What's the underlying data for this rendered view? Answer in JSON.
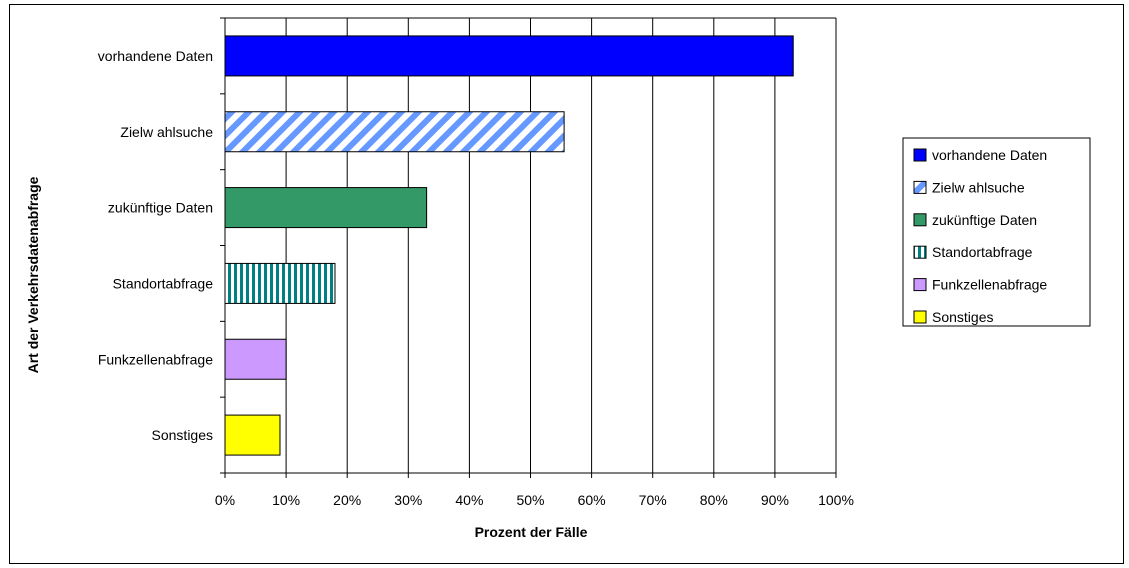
{
  "chart_data": {
    "type": "bar",
    "orientation": "horizontal",
    "title": "",
    "xlabel": "Prozent der Fälle",
    "ylabel": "Art der Verkehrsdatenabfrage",
    "xlim": [
      0,
      100
    ],
    "xticks": [
      "0%",
      "10%",
      "20%",
      "30%",
      "40%",
      "50%",
      "60%",
      "70%",
      "80%",
      "90%",
      "100%"
    ],
    "grid": "vertical",
    "legend_position": "right",
    "categories": [
      "vorhandene Daten",
      "Zielw ahlsuche",
      "zukünftige Daten",
      "Standortabfrage",
      "Funkzellenabfrage",
      "Sonstiges"
    ],
    "values": [
      93,
      55.5,
      33,
      18,
      10,
      9
    ],
    "colors": [
      "#0000ff",
      "#6699ff",
      "#339966",
      "#008080",
      "#cc99ff",
      "#ffff00"
    ],
    "patterns": [
      "solid",
      "diagonal-stripes",
      "solid",
      "vertical-stripes",
      "solid",
      "solid"
    ],
    "legend": [
      "vorhandene Daten",
      "Zielw ahlsuche",
      "zukünftige Daten",
      "Standortabfrage",
      "Funkzellenabfrage",
      "Sonstiges"
    ]
  }
}
